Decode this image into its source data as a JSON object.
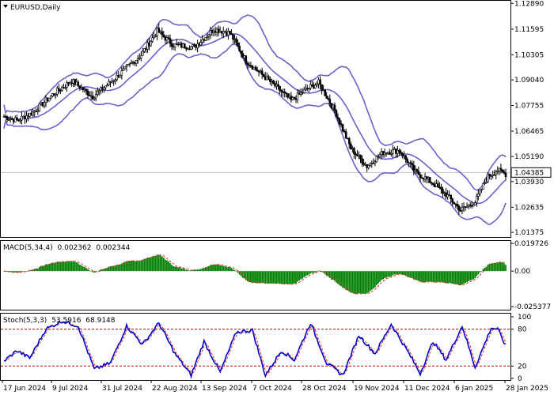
{
  "header": {
    "symbol_label": "EURUSD,Daily"
  },
  "colors": {
    "background": "#ffffff",
    "frame": "#000000",
    "bollinger": "#6a62cc",
    "candle_up": "#ffffff",
    "candle_down": "#000000",
    "current_price_bg": "#ffffff",
    "price_line": "#c0c0c0",
    "macd_hist": "#008000",
    "macd_signal": "#e03030",
    "stoch_main": "#0000cc",
    "stoch_signal": "#e03030",
    "stoch_levels": "#cc0000"
  },
  "chart_data": [
    {
      "type": "candlestick",
      "panel": "price",
      "title": "EURUSD,Daily",
      "y_ticks": [
        "1.12890",
        "1.11595",
        "1.10305",
        "1.09040",
        "1.07755",
        "1.06465",
        "1.05190",
        "1.03930",
        "1.02635",
        "1.01375"
      ],
      "ylim": [
        1.0114,
        1.1302
      ],
      "current_price": "1.04385",
      "indicators": [
        "Bollinger Bands (upper, middle, lower)"
      ]
    },
    {
      "type": "bar",
      "panel": "macd",
      "label": "MACD(5,34,4)",
      "values_text": [
        "0.002362",
        "0.002344"
      ],
      "y_ticks": [
        "0.019726",
        "0.00",
        "-0.025377"
      ],
      "ylim": [
        -0.0275,
        0.0215
      ]
    },
    {
      "type": "line",
      "panel": "stochastic",
      "label": "Stoch(5,3,3)",
      "values_text": [
        "53.5916",
        "68.9148"
      ],
      "y_ticks": [
        "100",
        "80",
        "20",
        "0"
      ],
      "levels": [
        80,
        20
      ],
      "ylim": [
        0,
        100
      ]
    }
  ],
  "x_axis": {
    "labels": [
      "17 Jun 2024",
      "9 Jul 2024",
      "31 Jul 2024",
      "22 Aug 2024",
      "13 Sep 2024",
      "7 Oct 2024",
      "28 Oct 2024",
      "19 Nov 2024",
      "11 Dec 2024",
      "6 Jan 2025",
      "28 Jan 2025"
    ]
  },
  "series_shape": {
    "price_keys": [
      [
        0,
        1.072
      ],
      [
        8,
        1.07
      ],
      [
        18,
        1.074
      ],
      [
        30,
        1.083
      ],
      [
        42,
        1.09
      ],
      [
        55,
        1.082
      ],
      [
        70,
        1.092
      ],
      [
        85,
        1.103
      ],
      [
        95,
        1.115
      ],
      [
        105,
        1.108
      ],
      [
        118,
        1.107
      ],
      [
        130,
        1.116
      ],
      [
        140,
        1.114
      ],
      [
        150,
        1.1
      ],
      [
        160,
        1.093
      ],
      [
        170,
        1.086
      ],
      [
        178,
        1.08
      ],
      [
        188,
        1.086
      ],
      [
        195,
        1.089
      ],
      [
        205,
        1.075
      ],
      [
        215,
        1.056
      ],
      [
        225,
        1.047
      ],
      [
        235,
        1.054
      ],
      [
        245,
        1.055
      ],
      [
        255,
        1.044
      ],
      [
        265,
        1.039
      ],
      [
        275,
        1.032
      ],
      [
        283,
        1.025
      ],
      [
        292,
        1.029
      ],
      [
        300,
        1.042
      ],
      [
        306,
        1.045
      ],
      [
        311,
        1.043
      ]
    ],
    "stoch_keys": [
      [
        0,
        28
      ],
      [
        8,
        45
      ],
      [
        16,
        33
      ],
      [
        26,
        80
      ],
      [
        36,
        93
      ],
      [
        46,
        85
      ],
      [
        56,
        15
      ],
      [
        66,
        25
      ],
      [
        76,
        85
      ],
      [
        86,
        55
      ],
      [
        96,
        90
      ],
      [
        106,
        40
      ],
      [
        116,
        5
      ],
      [
        124,
        60
      ],
      [
        134,
        10
      ],
      [
        144,
        75
      ],
      [
        154,
        78
      ],
      [
        162,
        5
      ],
      [
        172,
        45
      ],
      [
        180,
        30
      ],
      [
        190,
        90
      ],
      [
        200,
        25
      ],
      [
        210,
        5
      ],
      [
        220,
        70
      ],
      [
        230,
        40
      ],
      [
        240,
        88
      ],
      [
        250,
        45
      ],
      [
        258,
        8
      ],
      [
        266,
        60
      ],
      [
        274,
        30
      ],
      [
        284,
        85
      ],
      [
        292,
        18
      ],
      [
        302,
        82
      ],
      [
        306,
        80
      ],
      [
        311,
        53
      ]
    ]
  }
}
